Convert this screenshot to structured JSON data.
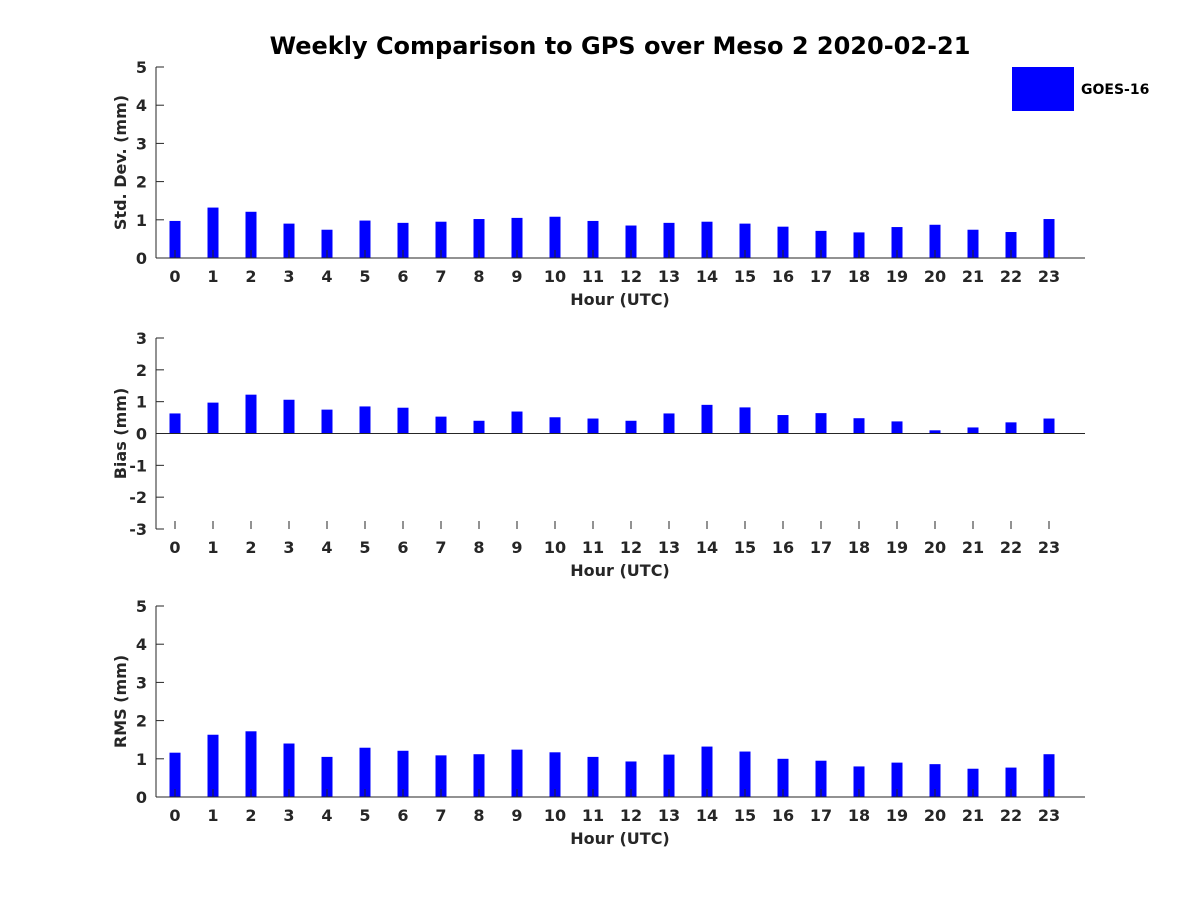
{
  "figure": {
    "title": "Weekly Comparison to GPS over Meso 2 2020-02-21"
  },
  "legend": {
    "label": "GOES-16",
    "color": "#0000ff"
  },
  "chart_data": [
    {
      "type": "bar",
      "name": "std-dev",
      "xlabel": "Hour (UTC)",
      "ylabel": "Std. Dev. (mm)",
      "ylim": [
        0,
        5
      ],
      "yticks": [
        "0",
        "1",
        "2",
        "3",
        "4",
        "5"
      ],
      "categories": [
        "0",
        "1",
        "2",
        "3",
        "4",
        "5",
        "6",
        "7",
        "8",
        "9",
        "10",
        "11",
        "12",
        "13",
        "14",
        "15",
        "16",
        "17",
        "18",
        "19",
        "20",
        "21",
        "22",
        "23"
      ],
      "series": [
        {
          "name": "GOES-16",
          "color": "#0000ff",
          "values": [
            0.97,
            1.32,
            1.21,
            0.9,
            0.74,
            0.98,
            0.92,
            0.95,
            1.02,
            1.05,
            1.08,
            0.97,
            0.85,
            0.92,
            0.95,
            0.9,
            0.82,
            0.71,
            0.67,
            0.81,
            0.87,
            0.74,
            0.68,
            1.02
          ]
        }
      ]
    },
    {
      "type": "bar",
      "name": "bias",
      "xlabel": "Hour (UTC)",
      "ylabel": "Bias (mm)",
      "ylim": [
        -3,
        3
      ],
      "yticks": [
        "-3",
        "-2",
        "-1",
        "0",
        "1",
        "2",
        "3"
      ],
      "categories": [
        "0",
        "1",
        "2",
        "3",
        "4",
        "5",
        "6",
        "7",
        "8",
        "9",
        "10",
        "11",
        "12",
        "13",
        "14",
        "15",
        "16",
        "17",
        "18",
        "19",
        "20",
        "21",
        "22",
        "23"
      ],
      "series": [
        {
          "name": "GOES-16",
          "color": "#0000ff",
          "values": [
            0.63,
            0.97,
            1.22,
            1.06,
            0.75,
            0.85,
            0.81,
            0.53,
            0.4,
            0.69,
            0.51,
            0.47,
            0.4,
            0.63,
            0.9,
            0.82,
            0.58,
            0.64,
            0.48,
            0.38,
            0.1,
            0.19,
            0.35,
            0.47
          ]
        }
      ]
    },
    {
      "type": "bar",
      "name": "rms",
      "xlabel": "Hour (UTC)",
      "ylabel": "RMS (mm)",
      "ylim": [
        0,
        5
      ],
      "yticks": [
        "0",
        "1",
        "2",
        "3",
        "4",
        "5"
      ],
      "categories": [
        "0",
        "1",
        "2",
        "3",
        "4",
        "5",
        "6",
        "7",
        "8",
        "9",
        "10",
        "11",
        "12",
        "13",
        "14",
        "15",
        "16",
        "17",
        "18",
        "19",
        "20",
        "21",
        "22",
        "23"
      ],
      "series": [
        {
          "name": "GOES-16",
          "color": "#0000ff",
          "values": [
            1.16,
            1.63,
            1.72,
            1.4,
            1.05,
            1.29,
            1.21,
            1.09,
            1.12,
            1.24,
            1.17,
            1.05,
            0.93,
            1.11,
            1.32,
            1.19,
            1.0,
            0.95,
            0.8,
            0.9,
            0.86,
            0.74,
            0.77,
            1.12
          ]
        }
      ]
    }
  ]
}
